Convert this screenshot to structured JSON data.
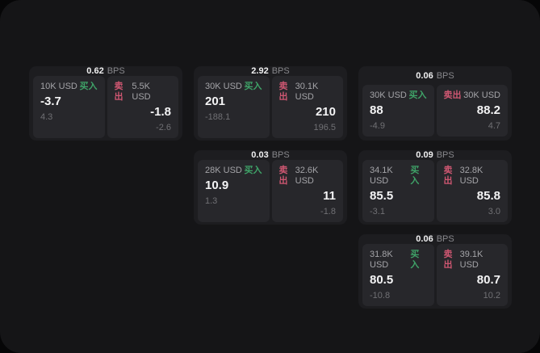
{
  "labels": {
    "bps_unit": "BPS",
    "buy": "买入",
    "sell": "卖出"
  },
  "colors": {
    "window_bg": "#151517",
    "card_bg": "#1d1d20",
    "panel_bg": "#27272b",
    "buy_green": "#3fa368",
    "sell_red": "#cf5772"
  },
  "cards": [
    {
      "row": 1,
      "col": 1,
      "spread": "0.62",
      "buy": {
        "size": "10K USD",
        "price": "-3.7",
        "sub": "4.3"
      },
      "sell": {
        "size": "5.5K USD",
        "price": "-1.8",
        "sub": "-2.6"
      }
    },
    {
      "row": 1,
      "col": 2,
      "spread": "2.92",
      "buy": {
        "size": "30K USD",
        "price": "201",
        "sub": "-188.1"
      },
      "sell": {
        "size": "30.1K USD",
        "price": "210",
        "sub": "196.5"
      }
    },
    {
      "row": 1,
      "col": 3,
      "spread": "0.06",
      "buy": {
        "size": "30K USD",
        "price": "88",
        "sub": "-4.9"
      },
      "sell": {
        "size": "30K USD",
        "price": "88.2",
        "sub": "4.7"
      }
    },
    {
      "row": 2,
      "col": 2,
      "spread": "0.03",
      "buy": {
        "size": "28K USD",
        "price": "10.9",
        "sub": "1.3"
      },
      "sell": {
        "size": "32.6K USD",
        "price": "11",
        "sub": "-1.8"
      }
    },
    {
      "row": 2,
      "col": 3,
      "spread": "0.09",
      "buy": {
        "size": "34.1K USD",
        "price": "85.5",
        "sub": "-3.1"
      },
      "sell": {
        "size": "32.8K USD",
        "price": "85.8",
        "sub": "3.0"
      }
    },
    {
      "row": 3,
      "col": 3,
      "spread": "0.06",
      "buy": {
        "size": "31.8K USD",
        "price": "80.5",
        "sub": "-10.8"
      },
      "sell": {
        "size": "39.1K USD",
        "price": "80.7",
        "sub": "10.2"
      }
    }
  ]
}
